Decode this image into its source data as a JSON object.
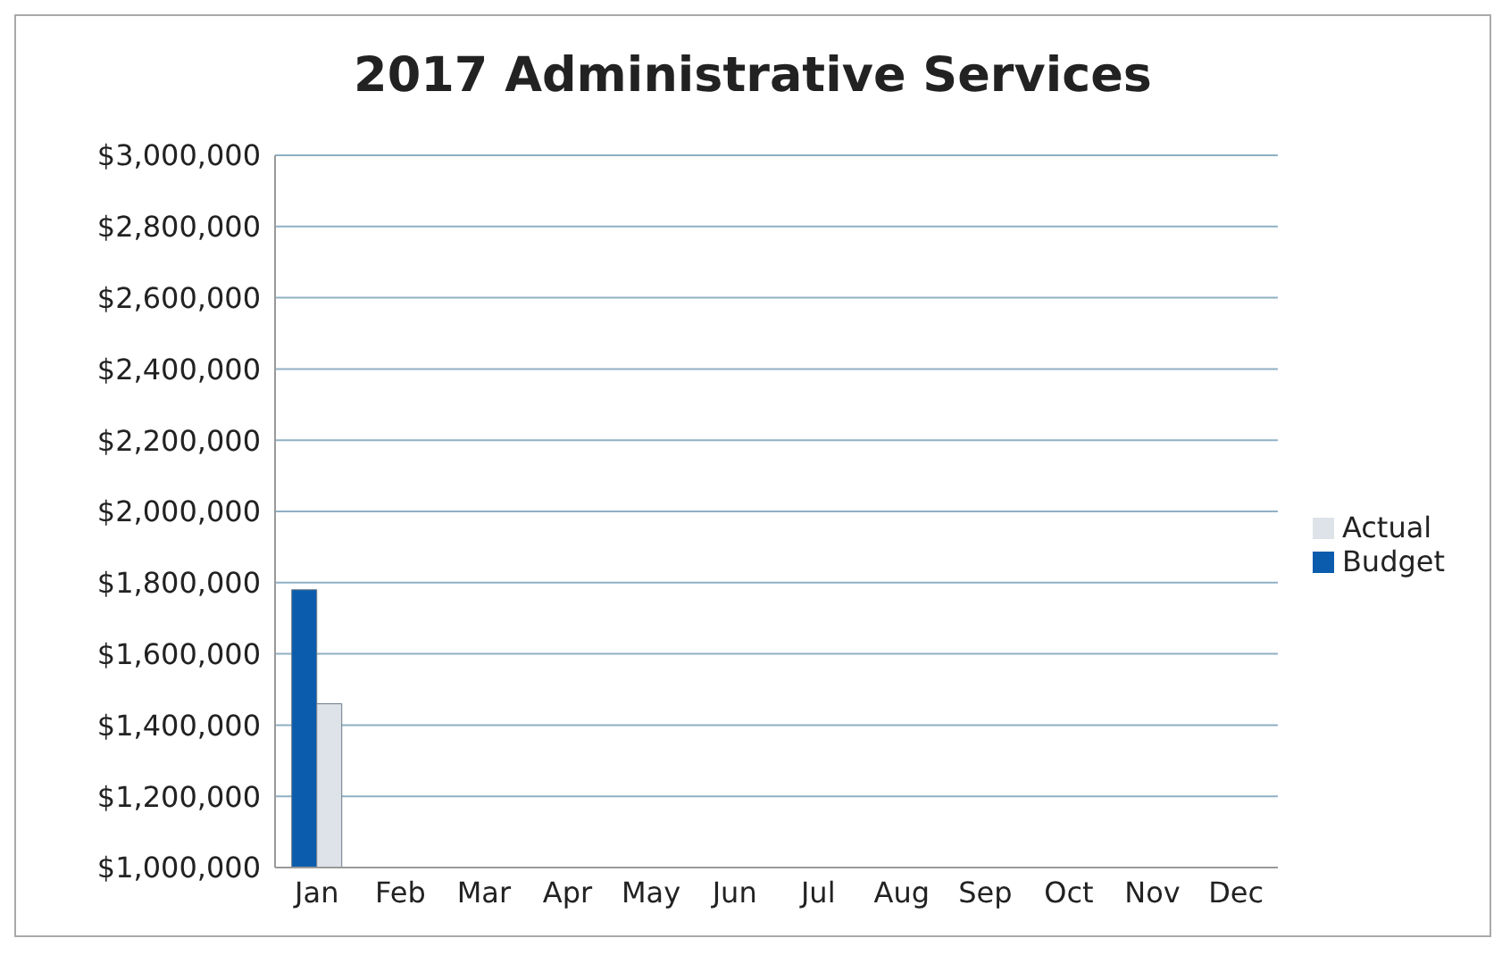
{
  "chart_data": {
    "type": "bar",
    "title": "2017 Administrative Services",
    "categories": [
      "Jan",
      "Feb",
      "Mar",
      "Apr",
      "May",
      "Jun",
      "Jul",
      "Aug",
      "Sep",
      "Oct",
      "Nov",
      "Dec"
    ],
    "series": [
      {
        "name": "Budget",
        "color": "#0b5cad",
        "values": [
          1780000,
          null,
          null,
          null,
          null,
          null,
          null,
          null,
          null,
          null,
          null,
          null
        ]
      },
      {
        "name": "Actual",
        "color": "#dde3e8",
        "values": [
          1460000,
          null,
          null,
          null,
          null,
          null,
          null,
          null,
          null,
          null,
          null,
          null
        ]
      }
    ],
    "ylim": [
      1000000,
      3000000
    ],
    "yticks": [
      {
        "value": 1000000,
        "label": "$1,000,000"
      },
      {
        "value": 1200000,
        "label": "$1,200,000"
      },
      {
        "value": 1400000,
        "label": "$1,400,000"
      },
      {
        "value": 1600000,
        "label": "$1,600,000"
      },
      {
        "value": 1800000,
        "label": "$1,800,000"
      },
      {
        "value": 2000000,
        "label": "$2,000,000"
      },
      {
        "value": 2200000,
        "label": "$2,200,000"
      },
      {
        "value": 2400000,
        "label": "$2,400,000"
      },
      {
        "value": 2600000,
        "label": "$2,600,000"
      },
      {
        "value": 2800000,
        "label": "$2,800,000"
      },
      {
        "value": 3000000,
        "label": "$3,000,000"
      }
    ],
    "grid": "y",
    "legend": "right"
  }
}
